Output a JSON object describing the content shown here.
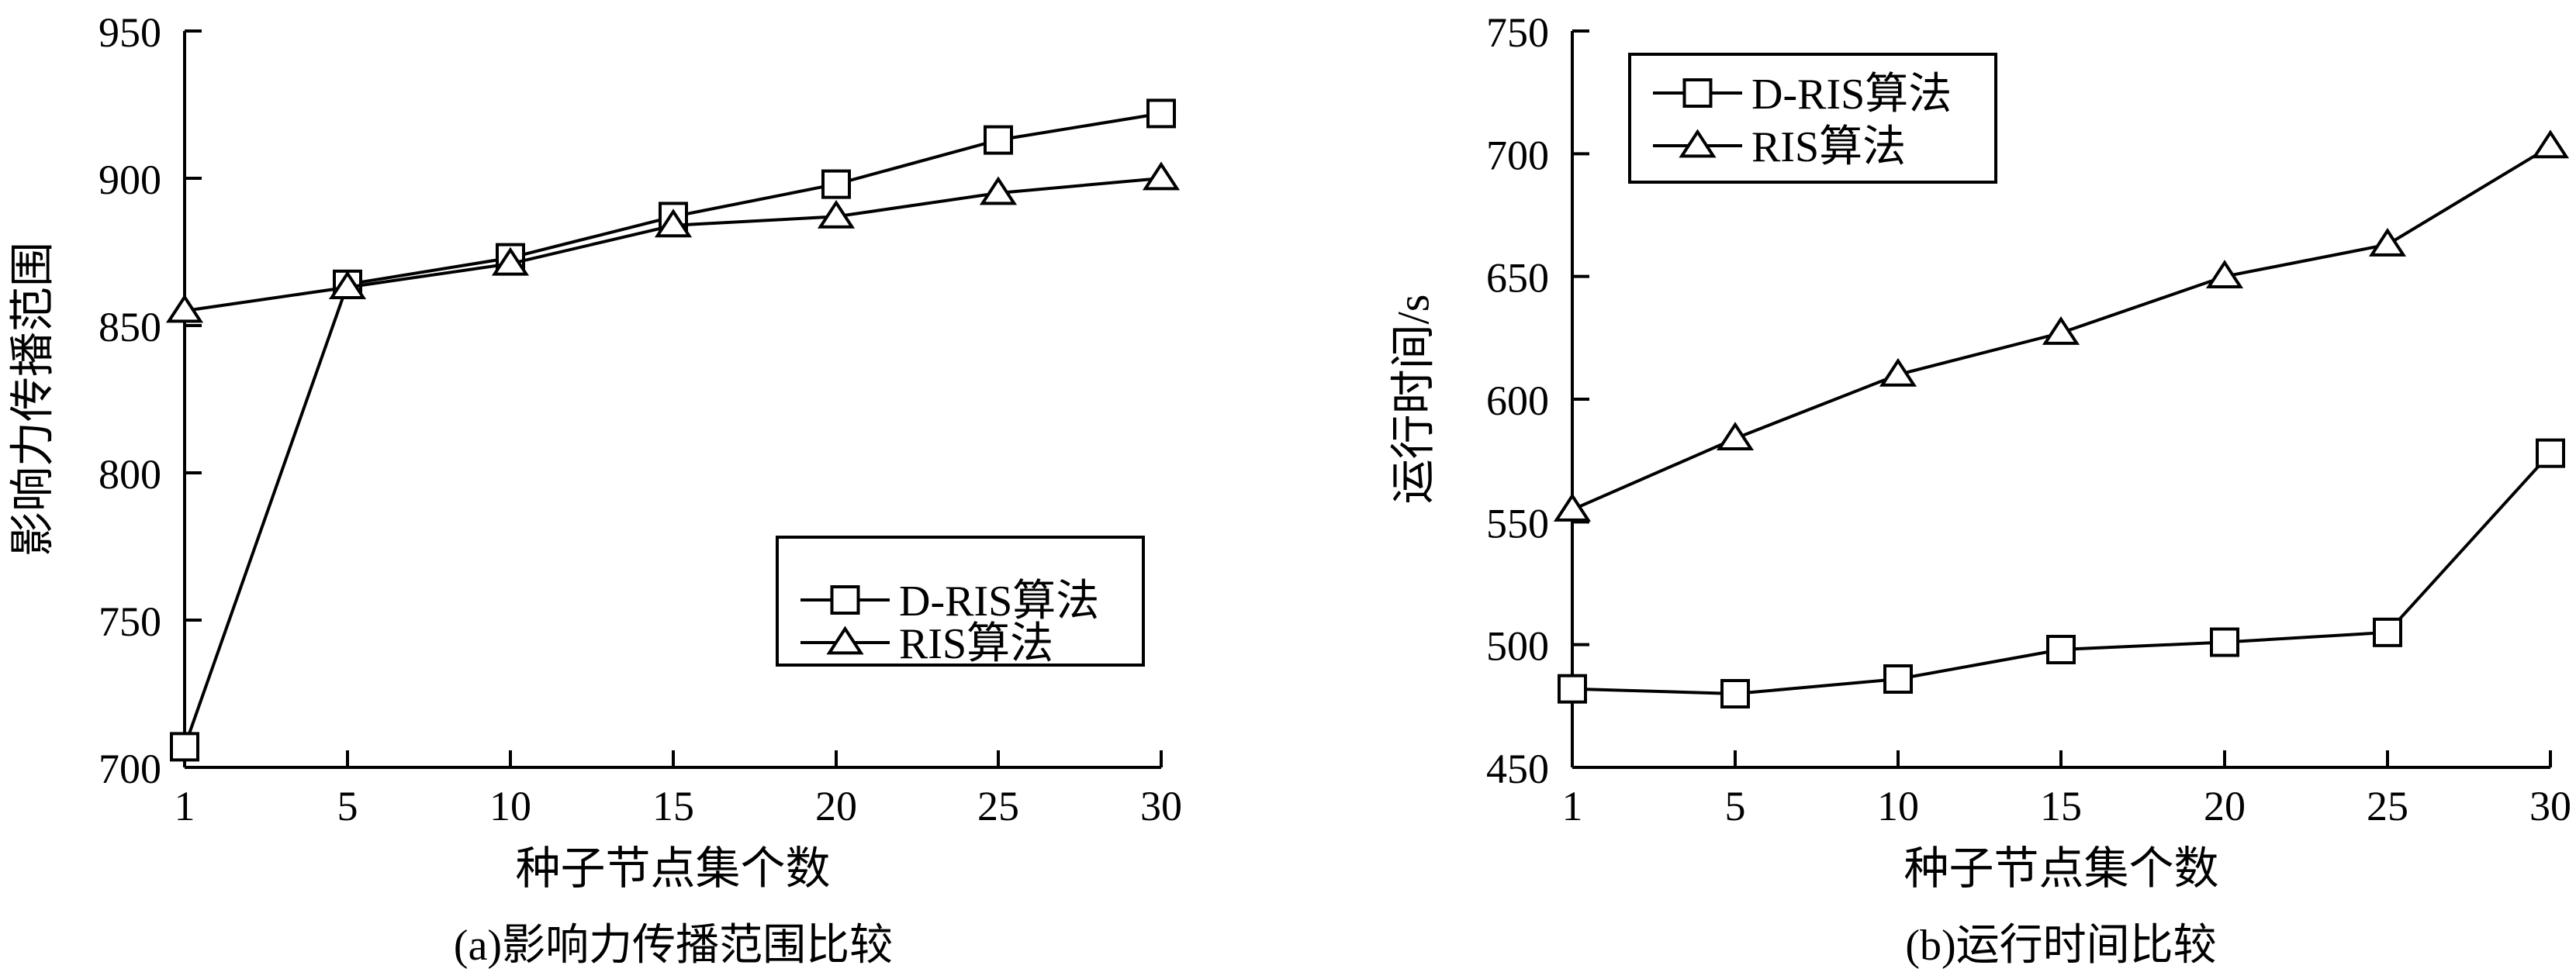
{
  "chart_data": [
    {
      "type": "line",
      "caption": "(a)影响力传播范围比较",
      "xlabel": "种子节点集个数",
      "ylabel": "影响力传播范围",
      "x": [
        1,
        5,
        10,
        15,
        20,
        25,
        30
      ],
      "xticks": [
        "1",
        "5",
        "10",
        "15",
        "20",
        "25",
        "30"
      ],
      "yticks": [
        "700",
        "750",
        "800",
        "850",
        "900",
        "950"
      ],
      "ylim": [
        700,
        950
      ],
      "legend_position": "lower-right",
      "series": [
        {
          "name": "D-RIS算法",
          "marker": "square",
          "values": [
            707,
            864,
            873,
            887,
            898,
            913,
            922
          ]
        },
        {
          "name": "RIS算法",
          "marker": "triangle",
          "values": [
            855,
            863,
            871,
            884,
            887,
            895,
            900
          ]
        }
      ]
    },
    {
      "type": "line",
      "caption": "(b)运行时间比较",
      "xlabel": "种子节点集个数",
      "ylabel": "运行时间/s",
      "x": [
        1,
        5,
        10,
        15,
        20,
        25,
        30
      ],
      "xticks": [
        "1",
        "5",
        "10",
        "15",
        "20",
        "25",
        "30"
      ],
      "yticks": [
        "450",
        "500",
        "550",
        "600",
        "650",
        "700",
        "750"
      ],
      "ylim": [
        450,
        750
      ],
      "legend_position": "top-left",
      "series": [
        {
          "name": "D-RIS算法",
          "marker": "square",
          "values": [
            482,
            480,
            486,
            498,
            501,
            505,
            578
          ]
        },
        {
          "name": "RIS算法",
          "marker": "triangle",
          "values": [
            555,
            584,
            610,
            627,
            650,
            663,
            703
          ]
        }
      ]
    }
  ]
}
